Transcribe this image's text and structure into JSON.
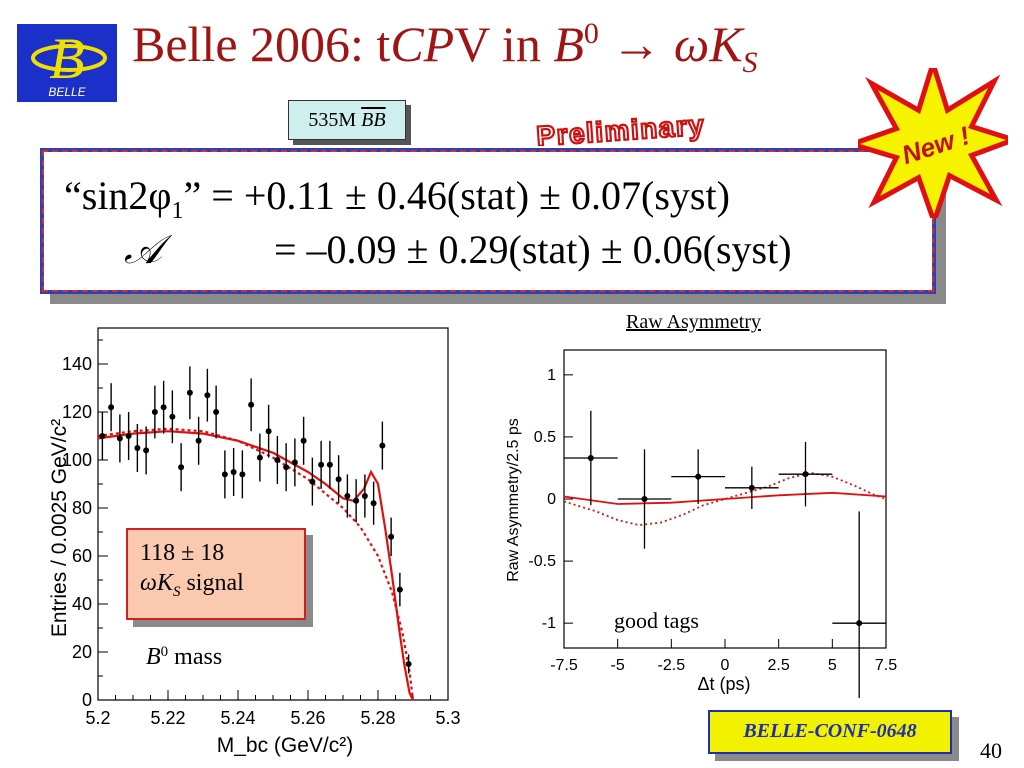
{
  "logo": {
    "letter": "B",
    "text": "BELLE"
  },
  "title": {
    "prefix": "Belle 2006: t",
    "cp": "CP",
    "v_in": "V in ",
    "b": "B",
    "b_sup": "0",
    "arrow": "→",
    "omega": "ω",
    "k": "K",
    "k_sub": "S"
  },
  "sample": {
    "prefix": "535M ",
    "bb": "BB"
  },
  "preliminary": "Preliminary",
  "new_badge": "New !",
  "results": {
    "line1_label": "“sin2φ",
    "line1_sub": "1",
    "line1_rest": "” = +0.11 ± 0.46(stat) ± 0.07(syst)",
    "line2_symbol": "𝒜",
    "line2_rest": "= –0.09 ± 0.29(stat) ± 0.06(syst)"
  },
  "signal_box": {
    "yield": "118 ± 18",
    "omega": "ω",
    "k": "K",
    "k_sub": "S",
    "signal": " signal"
  },
  "mass_label": {
    "b": "B",
    "sup": "0",
    "text": " mass"
  },
  "raw_asym_title": "Raw Asymmetry",
  "good_tags": "good tags",
  "conf": "BELLE-CONF-0648",
  "page_number": "40",
  "colors": {
    "title": "#a01414",
    "fit": "#e01010",
    "conf_text": "#1d2fb0",
    "conf_bg": "#f2f200"
  },
  "chart_data": [
    {
      "type": "scatter",
      "xlabel": "M_bc (GeV/c²)",
      "ylabel": "Entries / 0.0025 GeV/c²",
      "xlim": [
        5.2,
        5.3
      ],
      "ylim": [
        0,
        155
      ],
      "xticks": [
        "5.2",
        "5.22",
        "5.24",
        "5.26",
        "5.28",
        "5.3"
      ],
      "yticks": [
        "0",
        "20",
        "40",
        "60",
        "80",
        "100",
        "120",
        "140"
      ],
      "points": {
        "x": [
          5.20125,
          5.20375,
          5.20625,
          5.20875,
          5.21125,
          5.21375,
          5.21625,
          5.21875,
          5.22125,
          5.22375,
          5.22625,
          5.22875,
          5.23125,
          5.23375,
          5.23625,
          5.23875,
          5.24125,
          5.24375,
          5.24625,
          5.24875,
          5.25125,
          5.25375,
          5.25625,
          5.25875,
          5.26125,
          5.26375,
          5.26625,
          5.26875,
          5.27125,
          5.27375,
          5.27625,
          5.27875,
          5.28125,
          5.28375,
          5.28625,
          5.28875
        ],
        "y": [
          110,
          122,
          109,
          110,
          105,
          104,
          120,
          122,
          118,
          97,
          128,
          108,
          127,
          120,
          94,
          95,
          94,
          123,
          101,
          112,
          100,
          97,
          99,
          108,
          91,
          98,
          98,
          92,
          85,
          83,
          85,
          82,
          106,
          68,
          46,
          15
        ],
        "err": [
          10,
          10,
          10,
          10,
          10,
          10,
          11,
          11,
          11,
          10,
          11,
          10,
          11,
          11,
          10,
          10,
          10,
          11,
          10,
          11,
          10,
          10,
          10,
          10,
          10,
          10,
          10,
          10,
          9,
          9,
          9,
          9,
          10,
          8,
          7,
          4
        ]
      },
      "fit_total": {
        "x": [
          5.2,
          5.21,
          5.22,
          5.23,
          5.24,
          5.25,
          5.26,
          5.265,
          5.27,
          5.273,
          5.276,
          5.278,
          5.28,
          5.282,
          5.284,
          5.286,
          5.2875,
          5.289,
          5.29
        ],
        "y": [
          109,
          111,
          112,
          111,
          108,
          103,
          95,
          90,
          84,
          83,
          88,
          95,
          90,
          72,
          52,
          30,
          15,
          3,
          0
        ]
      },
      "fit_background": {
        "x": [
          5.2,
          5.21,
          5.22,
          5.23,
          5.24,
          5.25,
          5.26,
          5.27,
          5.275,
          5.28,
          5.284,
          5.287,
          5.289,
          5.29
        ],
        "y": [
          110,
          112,
          113,
          112,
          108,
          101,
          92,
          80,
          72,
          60,
          45,
          28,
          12,
          0
        ]
      }
    },
    {
      "type": "scatter",
      "title": "Raw Asymmetry",
      "xlabel": "Δt (ps)",
      "ylabel": "Raw Asymmetry/2.5 ps",
      "xlim": [
        -7.5,
        7.5
      ],
      "ylim": [
        -1.2,
        1.2
      ],
      "xticks": [
        "-7.5",
        "-5",
        "-2.5",
        "0",
        "2.5",
        "5",
        "7.5"
      ],
      "yticks": [
        "-1",
        "-0.5",
        "0",
        "0.5",
        "1"
      ],
      "points": {
        "x": [
          -6.25,
          -3.75,
          -1.25,
          1.25,
          3.75,
          6.25
        ],
        "y": [
          0.33,
          0.0,
          0.18,
          0.09,
          0.2,
          -1.0
        ],
        "xerr": [
          1.25,
          1.25,
          1.25,
          1.25,
          1.25,
          1.25
        ],
        "yerr": [
          0.38,
          0.4,
          0.22,
          0.17,
          0.26,
          0.9
        ]
      },
      "fit_solid": {
        "x": [
          -7.5,
          -5,
          -2.5,
          0,
          2.5,
          5,
          7.5
        ],
        "y": [
          0.02,
          -0.04,
          -0.03,
          0.0,
          0.03,
          0.05,
          0.02
        ]
      },
      "fit_dotted": {
        "x": [
          -7.5,
          -6,
          -5,
          -4,
          -3,
          -2,
          -1,
          0,
          1,
          2,
          3,
          4,
          5,
          6,
          7,
          7.5
        ],
        "y": [
          -0.02,
          -0.1,
          -0.17,
          -0.21,
          -0.19,
          -0.13,
          -0.05,
          0.0,
          0.05,
          0.1,
          0.17,
          0.21,
          0.18,
          0.11,
          0.03,
          0.0
        ]
      }
    }
  ]
}
